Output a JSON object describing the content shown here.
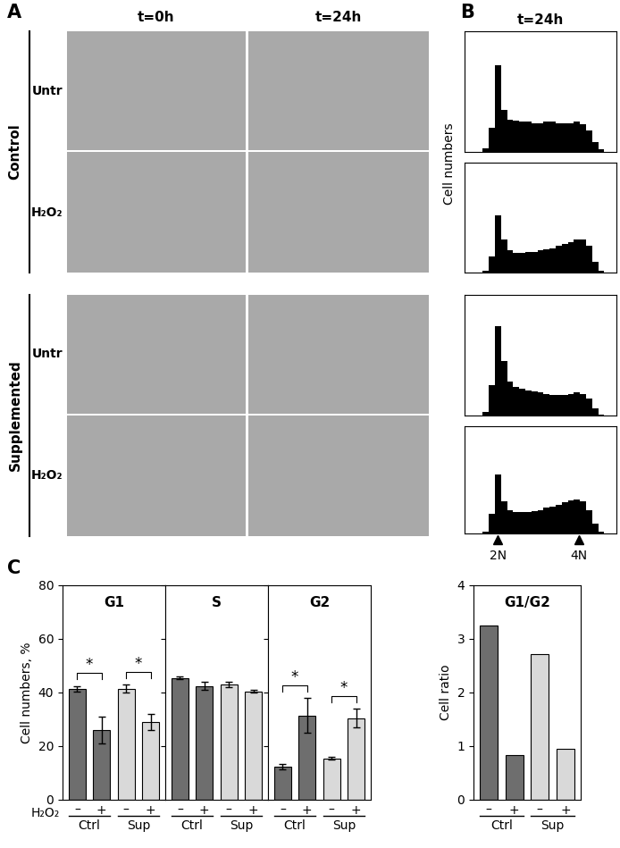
{
  "panel_labels": [
    "A",
    "B",
    "C"
  ],
  "micrographs": {
    "columns": [
      "t=0h",
      "t=24h"
    ],
    "groups": [
      {
        "name": "Control",
        "rows": [
          "Untr",
          "H₂O₂"
        ]
      },
      {
        "name": "Supplemented",
        "rows": [
          "Untr",
          "H₂O₂"
        ]
      }
    ]
  },
  "chart_data": [
    {
      "type": "histogram",
      "title": "t=24h",
      "ylabel": "Cell numbers",
      "bins": [
        0,
        4,
        8,
        12,
        16,
        20,
        24,
        28,
        32,
        36,
        40,
        44,
        48,
        52,
        56,
        60,
        64,
        68,
        72,
        76,
        80,
        84,
        88,
        92,
        96,
        100
      ],
      "values": [
        0,
        0,
        0,
        3,
        20,
        72,
        35,
        27,
        26,
        25,
        25,
        24,
        24,
        25,
        25,
        24,
        24,
        24,
        25,
        23,
        18,
        8,
        2,
        0,
        0
      ],
      "color": "#000000",
      "xlim": [
        0,
        100
      ],
      "ylim": [
        0,
        100
      ],
      "tick_labels": false
    },
    {
      "type": "histogram",
      "bins": [
        0,
        4,
        8,
        12,
        16,
        20,
        24,
        28,
        32,
        36,
        40,
        44,
        48,
        52,
        56,
        60,
        64,
        68,
        72,
        76,
        80,
        84,
        88,
        92,
        96,
        100
      ],
      "values": [
        0,
        0,
        0,
        2,
        15,
        52,
        30,
        20,
        18,
        18,
        19,
        19,
        20,
        21,
        22,
        24,
        26,
        28,
        30,
        30,
        24,
        10,
        2,
        0,
        0
      ],
      "color": "#000000",
      "xlim": [
        0,
        100
      ],
      "ylim": [
        0,
        100
      ],
      "tick_labels": false
    },
    {
      "type": "histogram",
      "bins": [
        0,
        4,
        8,
        12,
        16,
        20,
        24,
        28,
        32,
        36,
        40,
        44,
        48,
        52,
        56,
        60,
        64,
        68,
        72,
        76,
        80,
        84,
        88,
        92,
        96,
        100
      ],
      "values": [
        0,
        0,
        0,
        3,
        25,
        74,
        45,
        28,
        24,
        22,
        21,
        20,
        19,
        18,
        17,
        17,
        17,
        18,
        19,
        18,
        14,
        6,
        1,
        0,
        0
      ],
      "color": "#000000",
      "xlim": [
        0,
        100
      ],
      "ylim": [
        0,
        100
      ],
      "tick_labels": false
    },
    {
      "type": "histogram",
      "bins": [
        0,
        4,
        8,
        12,
        16,
        20,
        24,
        28,
        32,
        36,
        40,
        44,
        48,
        52,
        56,
        60,
        64,
        68,
        72,
        76,
        80,
        84,
        88,
        92,
        96,
        100
      ],
      "values": [
        0,
        0,
        0,
        2,
        18,
        55,
        30,
        22,
        20,
        20,
        20,
        21,
        22,
        24,
        25,
        27,
        29,
        31,
        32,
        30,
        22,
        9,
        2,
        0,
        0
      ],
      "color": "#000000",
      "xlim": [
        0,
        100
      ],
      "ylim": [
        0,
        100
      ],
      "tick_labels": "x",
      "xticks": [
        {
          "value": 22,
          "label": "2N"
        },
        {
          "value": 75,
          "label": "4N"
        }
      ]
    },
    {
      "type": "bar",
      "title": "G1",
      "ylabel": "Cell numbers, %",
      "xlabel": "H₂O₂",
      "categories": [
        "–",
        "+",
        "–",
        "+"
      ],
      "groups": [
        "Ctrl",
        "Sup"
      ],
      "values": [
        41.5,
        26,
        41.5,
        29
      ],
      "errors": [
        1,
        5,
        1.5,
        3
      ],
      "colors": [
        "#6e6e6e",
        "#6e6e6e",
        "#d9d9d9",
        "#d9d9d9"
      ],
      "ylim": [
        0,
        80
      ],
      "yticks": [
        0,
        20,
        40,
        60,
        80
      ],
      "significance": {
        "label": "*",
        "groups": [
          "Ctrl",
          "Sup"
        ]
      }
    },
    {
      "type": "bar",
      "title": "S",
      "categories": [
        "–",
        "+",
        "–",
        "+"
      ],
      "groups": [
        "Ctrl",
        "Sup"
      ],
      "values": [
        45.5,
        42.5,
        43,
        40.5
      ],
      "errors": [
        0.5,
        1.5,
        1,
        0.5
      ],
      "colors": [
        "#6e6e6e",
        "#6e6e6e",
        "#d9d9d9",
        "#d9d9d9"
      ],
      "ylim": [
        0,
        80
      ],
      "yticks": [
        0,
        20,
        40,
        60,
        80
      ],
      "tick_labels": "x"
    },
    {
      "type": "bar",
      "title": "G2",
      "categories": [
        "–",
        "+",
        "–",
        "+"
      ],
      "groups": [
        "Ctrl",
        "Sup"
      ],
      "values": [
        12.5,
        31.5,
        15.5,
        30.5
      ],
      "errors": [
        1,
        6.5,
        0.5,
        3.5
      ],
      "colors": [
        "#6e6e6e",
        "#6e6e6e",
        "#d9d9d9",
        "#d9d9d9"
      ],
      "ylim": [
        0,
        80
      ],
      "yticks": [
        0,
        20,
        40,
        60,
        80
      ],
      "tick_labels": "x",
      "significance": {
        "label": "*",
        "groups": [
          "Ctrl",
          "Sup"
        ]
      }
    },
    {
      "type": "bar",
      "title": "G1/G2",
      "ylabel": "Cell ratio",
      "categories": [
        "–",
        "+",
        "–",
        "+"
      ],
      "groups": [
        "Ctrl",
        "Sup"
      ],
      "values": [
        3.25,
        0.83,
        2.72,
        0.95
      ],
      "colors": [
        "#6e6e6e",
        "#6e6e6e",
        "#d9d9d9",
        "#d9d9d9"
      ],
      "ylim": [
        0,
        4
      ],
      "yticks": [
        0,
        1,
        2,
        3,
        4
      ]
    }
  ]
}
